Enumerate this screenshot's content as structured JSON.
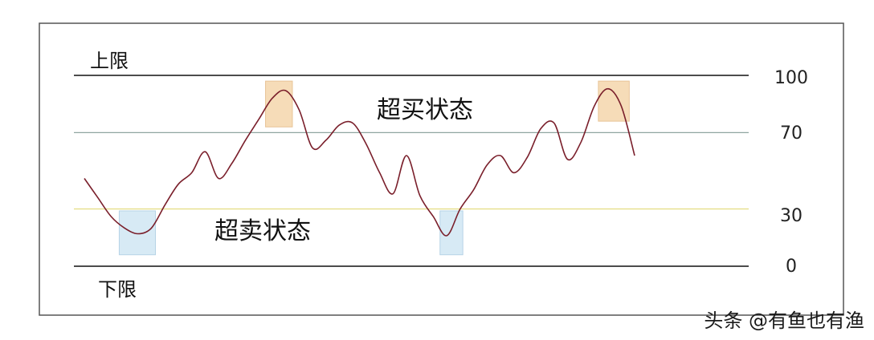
{
  "chart_data": {
    "type": "line",
    "title": "",
    "xlabel": "",
    "ylabel": "",
    "ylim": [
      -7,
      110
    ],
    "x": [
      0,
      1,
      2,
      3,
      4,
      5,
      6,
      7,
      8,
      9,
      10,
      11,
      12,
      13,
      14,
      15,
      16,
      17,
      18,
      19,
      20,
      21,
      22,
      23,
      24,
      25,
      26,
      27,
      28,
      29,
      30,
      31,
      32,
      33,
      34,
      35,
      36,
      37,
      38,
      39,
      40,
      41
    ],
    "series": [
      {
        "values": [
          46,
          36,
          26,
          20,
          17,
          20,
          32,
          43,
          49,
          60,
          46,
          54,
          66,
          77,
          88,
          92,
          82,
          62,
          66,
          74,
          75,
          64,
          49,
          38,
          58,
          37,
          26,
          16,
          30,
          40,
          53,
          58,
          49,
          57,
          72,
          75,
          56,
          65,
          84,
          93,
          84,
          58
        ]
      }
    ],
    "reference_lines": [
      {
        "value": 100
      },
      {
        "value": 70
      },
      {
        "value": 30
      },
      {
        "value": 0
      }
    ],
    "y_ticks": [
      "100",
      "70",
      "30",
      "0"
    ],
    "line_labels": {
      "upper": "上限",
      "lower": "下限"
    },
    "annotations": [
      {
        "text": "超买状态"
      },
      {
        "text": "超卖状态"
      }
    ],
    "highlight_boxes": [
      {
        "x_from": 13.5,
        "x_to": 15.5,
        "y_from": 73,
        "y_to": 97,
        "zone": "overbought"
      },
      {
        "x_from": 38.3,
        "x_to": 40.6,
        "y_from": 76,
        "y_to": 97,
        "zone": "overbought"
      },
      {
        "x_from": 2.6,
        "x_to": 5.3,
        "y_from": 6,
        "y_to": 29,
        "zone": "oversold"
      },
      {
        "x_from": 26.5,
        "x_to": 28.2,
        "y_from": 6,
        "y_to": 29,
        "zone": "oversold"
      }
    ],
    "colors": {
      "line": "#7a1f2b",
      "limit_lines": "#111111",
      "line_70": "#8fa5a0",
      "line_30": "#e6df8a",
      "overbought_fill": "#f6dcb8",
      "overbought_stroke": "#e8c497",
      "oversold_fill": "#d7eaf5",
      "oversold_stroke": "#b6d3e6",
      "frame": "#555555"
    },
    "grid": false,
    "legend": "none"
  },
  "watermark": "头条 @有鱼也有渔"
}
